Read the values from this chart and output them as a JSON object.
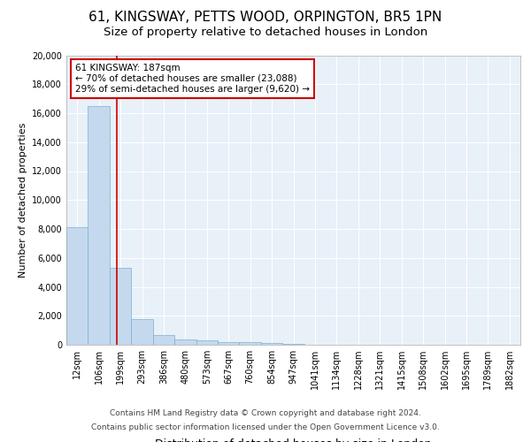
{
  "title": "61, KINGSWAY, PETTS WOOD, ORPINGTON, BR5 1PN",
  "subtitle": "Size of property relative to detached houses in London",
  "xlabel": "Distribution of detached houses by size in London",
  "ylabel": "Number of detached properties",
  "footer_line1": "Contains HM Land Registry data © Crown copyright and database right 2024.",
  "footer_line2": "Contains public sector information licensed under the Open Government Licence v3.0.",
  "bar_values": [
    8100,
    16500,
    5300,
    1750,
    700,
    350,
    300,
    200,
    200,
    100,
    60,
    30,
    20,
    15,
    10,
    8,
    5,
    4,
    3,
    2,
    1
  ],
  "bar_labels": [
    "12sqm",
    "106sqm",
    "199sqm",
    "293sqm",
    "386sqm",
    "480sqm",
    "573sqm",
    "667sqm",
    "760sqm",
    "854sqm",
    "947sqm",
    "1041sqm",
    "1134sqm",
    "1228sqm",
    "1321sqm",
    "1415sqm",
    "1508sqm",
    "1602sqm",
    "1695sqm",
    "1789sqm",
    "1882sqm"
  ],
  "bar_color": "#c5d9ee",
  "bar_edge_color": "#7bafd4",
  "red_line_x": 1.85,
  "annotation_text": "61 KINGSWAY: 187sqm\n← 70% of detached houses are smaller (23,088)\n29% of semi-detached houses are larger (9,620) →",
  "annotation_box_color": "#ffffff",
  "annotation_box_edge": "#cc0000",
  "red_line_color": "#cc0000",
  "ylim": [
    0,
    20000
  ],
  "yticks": [
    0,
    2000,
    4000,
    6000,
    8000,
    10000,
    12000,
    14000,
    16000,
    18000,
    20000
  ],
  "bg_color": "#e8f0f8",
  "grid_color": "#ffffff",
  "title_fontsize": 11,
  "subtitle_fontsize": 9.5,
  "ylabel_fontsize": 8,
  "xlabel_fontsize": 9,
  "tick_fontsize": 7,
  "annot_fontsize": 7.5
}
